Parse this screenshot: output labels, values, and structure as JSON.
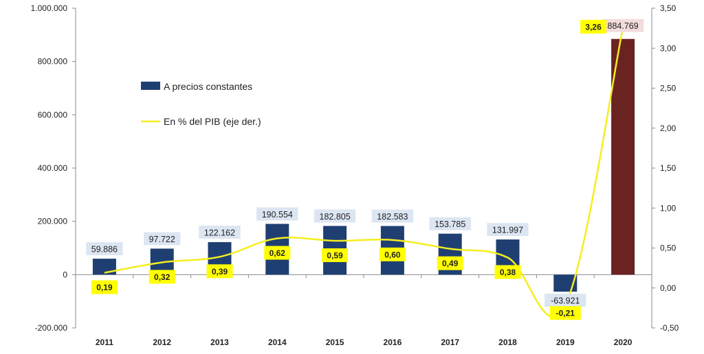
{
  "chart_data": {
    "type": "bar",
    "categories": [
      "2011",
      "2012",
      "2013",
      "2014",
      "2015",
      "2016",
      "2017",
      "2018",
      "2019",
      "2020"
    ],
    "series": [
      {
        "name": "A precios constantes",
        "type": "bar",
        "axis": "left",
        "values": [
          59886,
          97722,
          122162,
          190554,
          182805,
          182583,
          153785,
          131997,
          -63921,
          884769
        ],
        "labels": [
          "59.886",
          "97.722",
          "122.162",
          "190.554",
          "182.805",
          "182.583",
          "153.785",
          "131.997",
          "-63.921",
          "884.769"
        ],
        "color": "#1F3F73",
        "highlight_color": "#6B2322"
      },
      {
        "name": "En % del PIB (eje der.)",
        "type": "line",
        "axis": "right",
        "values": [
          0.19,
          0.32,
          0.39,
          0.62,
          0.59,
          0.6,
          0.49,
          0.38,
          -0.21,
          3.26
        ],
        "labels": [
          "0,19",
          "0,32",
          "0,39",
          "0,62",
          "0,59",
          "0,60",
          "0,49",
          "0,38",
          "-0,21",
          "3,26"
        ],
        "color": "#F5EE1E"
      }
    ],
    "ylim": [
      -200000,
      1000000
    ],
    "y_ticks": [
      "-200.000",
      "0",
      "200.000",
      "400.000",
      "600.000",
      "800.000",
      "1.000.000"
    ],
    "y2lim": [
      -0.5,
      3.5
    ],
    "y2_ticks": [
      "-0,50",
      "0,00",
      "0,50",
      "1,00",
      "1,50",
      "2,00",
      "2,50",
      "3,00",
      "3,50"
    ],
    "xlabel": "",
    "ylabel": "",
    "title": "",
    "grid": false,
    "legend": "upper-left-inside",
    "colors": {
      "bar_label_bg": "#DCE6F2",
      "highlight_label_bg": "#F2DCDB",
      "pct_label_bg": "#FFFF00"
    }
  }
}
